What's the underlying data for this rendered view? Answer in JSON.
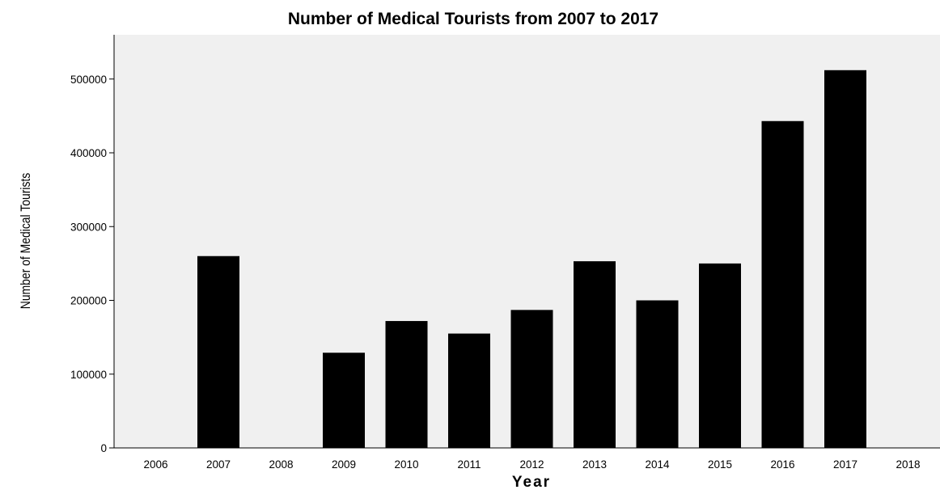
{
  "chart_data": {
    "type": "bar",
    "title": "Number of Medical Tourists from 2007 to 2017",
    "xlabel": "Year",
    "ylabel": "Number of Medical Tourists",
    "categories": [
      "2006",
      "2007",
      "2008",
      "2009",
      "2010",
      "2011",
      "2012",
      "2013",
      "2014",
      "2015",
      "2016",
      "2017",
      "2018"
    ],
    "values": [
      null,
      260000,
      null,
      129000,
      172000,
      155000,
      187000,
      253000,
      200000,
      250000,
      443000,
      512000,
      null
    ],
    "yticks": [
      0,
      100000,
      200000,
      300000,
      400000,
      500000
    ],
    "ylim": [
      0,
      560000
    ],
    "grid": false,
    "colors": {
      "bar": "#000000",
      "plot_background": "#f0f0f0",
      "axis": "#000000"
    }
  }
}
